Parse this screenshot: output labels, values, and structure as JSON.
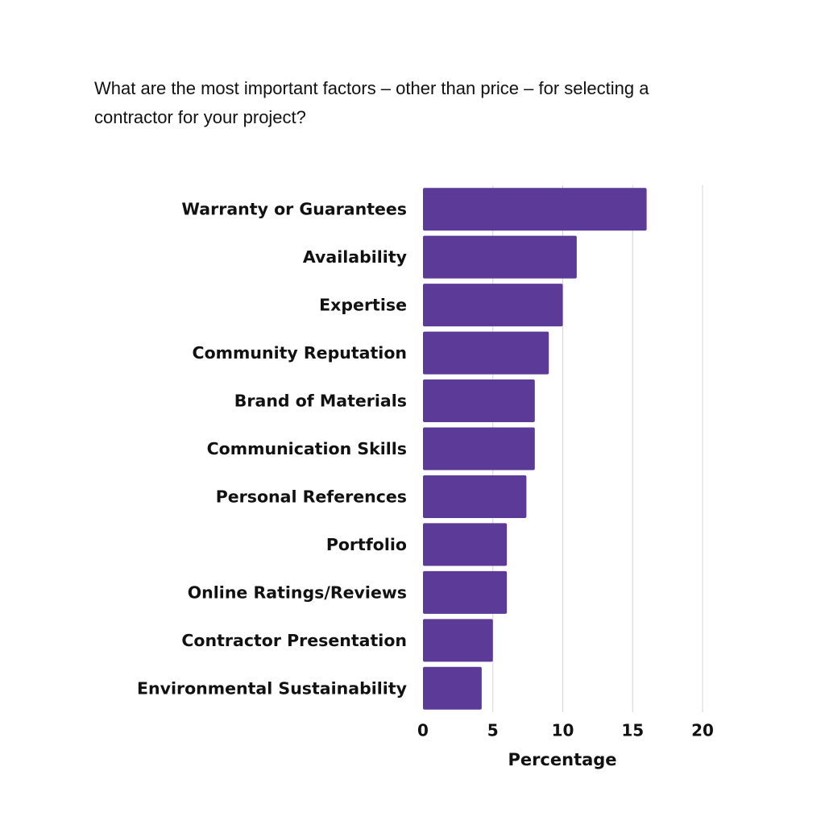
{
  "chart_data": {
    "type": "barh",
    "title": "What are the most important factors – other than price – for selecting a contractor for your project?",
    "categories": [
      "Warranty or Guarantees",
      "Availability",
      "Expertise",
      "Community Reputation",
      "Brand of Materials",
      "Communication Skills",
      "Personal References",
      "Portfolio",
      "Online Ratings/Reviews",
      "Contractor Presentation",
      "Environmental Sustainability"
    ],
    "values": [
      16,
      11,
      10,
      9,
      8,
      8,
      7.4,
      6,
      6,
      5,
      4.2
    ],
    "color": "#5c3a97",
    "x_label": "Percentage",
    "xlim": [
      0,
      20
    ],
    "xticks": [
      0,
      5,
      10,
      15,
      20
    ],
    "grid": true
  }
}
